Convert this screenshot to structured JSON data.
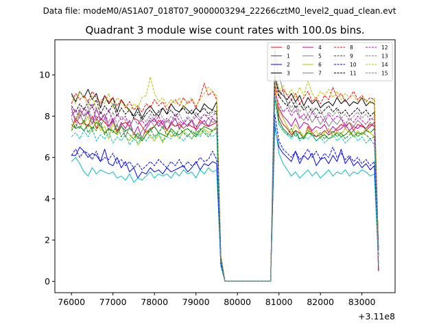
{
  "suptitle": "Data file: modeM0/AS1A07_018T07_9000003294_22266cztM0_level2_quad_clean.evt",
  "chart_data": {
    "type": "line",
    "title": "Quadrant 3 module wise count rates with 100.0s bins.",
    "xlabel": "",
    "ylabel": "",
    "x_offset_label": "+3.11e8",
    "x_offset": 311000000,
    "xlim": [
      75600,
      83800
    ],
    "ylim": [
      -0.55,
      11.7
    ],
    "xticks": [
      76000,
      77000,
      78000,
      79000,
      80000,
      81000,
      82000,
      83000
    ],
    "yticks": [
      0,
      2,
      4,
      6,
      8,
      10
    ],
    "legend_position": "top-right",
    "x_start": 76000,
    "x_step": 100,
    "n_points": 75,
    "series": [
      {
        "name": "0",
        "color": "#ff0000",
        "dash": "solid",
        "seg1": [
          7.4,
          7.9,
          7.6,
          7.7,
          7.5,
          8.0,
          7.4,
          7.9,
          7.7,
          7.5,
          7.8,
          7.3,
          7.6,
          7.7,
          7.5,
          7.9,
          7.8,
          7.5,
          7.2,
          7.4,
          7.5,
          7.8,
          7.6,
          7.3,
          7.7,
          7.5,
          7.6,
          7.4,
          7.6,
          7.5,
          7.4,
          7.8,
          7.6,
          7.5,
          7.6,
          7.7
        ],
        "seg2": [
          9.6,
          8.0,
          7.6,
          7.4,
          7.1,
          7.3,
          7.2,
          6.9,
          7.5,
          7.2,
          7.0,
          7.1,
          7.3,
          7.1,
          7.2,
          7.4,
          7.6,
          7.5,
          7.7,
          7.3,
          7.6,
          7.5,
          7.4,
          7.6,
          7.5
        ]
      },
      {
        "name": "1",
        "color": "#008000",
        "dash": "solid",
        "seg1": [
          7.6,
          7.4,
          7.5,
          7.3,
          7.6,
          7.4,
          7.7,
          7.5,
          7.2,
          7.4,
          7.3,
          7.1,
          7.5,
          7.3,
          7.4,
          7.2,
          7.0,
          6.8,
          7.1,
          7.3,
          7.5,
          7.2,
          7.1,
          7.0,
          7.4,
          7.2,
          7.1,
          7.3,
          7.4,
          7.2,
          7.0,
          7.3,
          7.5,
          7.4,
          7.3,
          7.5
        ],
        "seg2": [
          9.0,
          7.8,
          7.4,
          7.2,
          7.0,
          7.3,
          6.9,
          7.0,
          7.2,
          7.1,
          6.8,
          7.0,
          7.1,
          6.9,
          7.0,
          7.2,
          7.0,
          7.1,
          7.3,
          7.0,
          7.2,
          7.1,
          7.3,
          7.2,
          7.4
        ]
      },
      {
        "name": "2",
        "color": "#0000ff",
        "dash": "solid",
        "seg1": [
          6.1,
          6.1,
          6.5,
          6.3,
          6.0,
          6.2,
          6.1,
          5.8,
          6.4,
          5.7,
          5.6,
          6.0,
          5.5,
          5.8,
          5.3,
          5.5,
          5.0,
          5.3,
          5.2,
          5.5,
          5.3,
          5.4,
          5.2,
          5.5,
          5.3,
          5.4,
          5.5,
          5.6,
          5.3,
          5.5,
          5.8,
          5.4,
          5.7,
          5.6,
          5.8,
          5.7
        ],
        "seg2": [
          7.5,
          6.5,
          6.2,
          6.0,
          5.8,
          6.3,
          5.7,
          6.1,
          5.9,
          6.2,
          5.6,
          5.9,
          6.0,
          5.7,
          6.1,
          5.8,
          6.4,
          5.7,
          6.0,
          5.6,
          5.8,
          5.5,
          5.7,
          5.4,
          5.6
        ]
      },
      {
        "name": "3",
        "color": "#000000",
        "dash": "solid",
        "seg1": [
          9.1,
          8.7,
          9.2,
          8.9,
          9.3,
          8.8,
          9.1,
          8.4,
          9.0,
          8.6,
          8.9,
          8.2,
          8.8,
          8.5,
          8.3,
          8.0,
          8.4,
          7.9,
          8.3,
          8.5,
          8.2,
          8.0,
          8.4,
          8.1,
          8.6,
          8.3,
          8.2,
          8.5,
          8.3,
          8.1,
          8.4,
          8.2,
          8.6,
          8.4,
          8.3,
          8.7
        ],
        "seg2": [
          9.8,
          9.2,
          9.0,
          8.8,
          9.1,
          8.7,
          9.0,
          8.5,
          8.9,
          8.6,
          8.8,
          8.4,
          8.6,
          8.7,
          8.5,
          8.9,
          8.6,
          8.8,
          8.5,
          8.7,
          8.6,
          8.9,
          8.5,
          8.7,
          8.6
        ]
      },
      {
        "name": "4",
        "color": "#bf00bf",
        "dash": "solid",
        "seg1": [
          8.4,
          7.7,
          8.3,
          8.0,
          8.2,
          7.6,
          8.4,
          7.8,
          8.1,
          7.5,
          7.9,
          7.2,
          7.7,
          7.4,
          7.8,
          7.1,
          7.5,
          6.9,
          7.4,
          7.7,
          7.9,
          7.5,
          7.8,
          7.3,
          7.6,
          7.9,
          7.4,
          7.7,
          7.5,
          7.8,
          7.3,
          7.6,
          7.8,
          7.5,
          7.9,
          7.7
        ],
        "seg2": [
          9.3,
          8.4,
          8.0,
          7.8,
          7.5,
          7.9,
          7.4,
          7.7,
          7.6,
          7.3,
          7.5,
          7.4,
          7.6,
          7.2,
          7.5,
          7.3,
          7.4,
          7.6,
          7.3,
          7.5,
          7.4,
          7.6,
          7.3,
          7.5,
          7.7
        ]
      },
      {
        "name": "5",
        "color": "#00bfbf",
        "dash": "solid",
        "seg1": [
          5.8,
          6.0,
          5.7,
          5.3,
          5.1,
          5.5,
          5.2,
          5.4,
          5.3,
          5.2,
          5.3,
          5.0,
          5.1,
          4.9,
          5.2,
          4.8,
          5.0,
          4.9,
          5.1,
          5.3,
          5.0,
          5.2,
          5.1,
          5.2,
          5.0,
          5.3,
          5.1,
          5.4,
          5.2,
          5.3,
          5.0,
          5.4,
          5.2,
          5.5,
          5.3,
          5.4
        ],
        "seg2": [
          7.7,
          6.2,
          5.7,
          5.4,
          5.1,
          5.3,
          5.0,
          5.2,
          5.4,
          5.1,
          5.3,
          5.0,
          5.2,
          5.4,
          5.1,
          5.3,
          5.2,
          5.4,
          5.1,
          5.3,
          5.2,
          5.4,
          5.3,
          5.1,
          5.2
        ]
      },
      {
        "name": "6",
        "color": "#bfbf00",
        "dash": "solid",
        "seg1": [
          7.4,
          7.8,
          8.2,
          7.6,
          8.0,
          7.2,
          7.9,
          7.3,
          7.5,
          6.9,
          7.7,
          7.1,
          7.6,
          7.0,
          6.8,
          7.2,
          6.6,
          6.9,
          7.3,
          7.0,
          6.8,
          7.1,
          6.7,
          7.4,
          7.0,
          7.2,
          6.9,
          7.3,
          7.1,
          6.9,
          7.3,
          7.1,
          7.4,
          7.2,
          7.3,
          7.5
        ],
        "seg2": [
          9.4,
          8.3,
          7.9,
          7.5,
          7.2,
          7.6,
          7.3,
          7.0,
          7.4,
          7.1,
          7.3,
          6.9,
          7.2,
          7.4,
          7.0,
          7.3,
          7.1,
          7.4,
          7.2,
          7.0,
          7.3,
          7.1,
          7.4,
          7.2,
          7.0
        ]
      },
      {
        "name": "7",
        "color": "#808080",
        "dash": "solid",
        "seg1": [
          7.9,
          7.4,
          8.1,
          7.7,
          8.3,
          7.6,
          8.0,
          7.5,
          7.9,
          7.3,
          7.8,
          7.2,
          7.6,
          7.0,
          7.5,
          7.2,
          6.9,
          7.3,
          7.6,
          7.8,
          7.5,
          7.7,
          7.4,
          7.8,
          7.6,
          7.5,
          7.7,
          7.4,
          7.6,
          7.8,
          7.5,
          7.7,
          7.6,
          7.9,
          7.7,
          7.8
        ],
        "seg2": [
          11.2,
          10.0,
          9.2,
          8.6,
          8.2,
          8.5,
          8.0,
          7.8,
          8.1,
          7.7,
          8.0,
          7.6,
          7.9,
          7.5,
          7.8,
          7.6,
          7.9,
          7.4,
          7.7,
          7.5,
          7.8,
          7.6,
          7.4,
          7.7,
          7.5
        ]
      },
      {
        "name": "8",
        "color": "#ff0000",
        "dash": "dashed",
        "seg1": [
          8.6,
          9.1,
          8.8,
          9.0,
          8.7,
          9.2,
          8.9,
          8.6,
          9.0,
          8.7,
          8.9,
          8.5,
          8.8,
          8.4,
          8.7,
          8.3,
          8.5,
          8.2,
          8.6,
          8.4,
          8.8,
          8.5,
          8.7,
          8.3,
          8.6,
          8.8,
          8.5,
          8.9,
          8.6,
          8.8,
          8.4,
          8.9,
          9.6,
          9.0,
          9.2,
          8.8
        ],
        "seg2": [
          9.5,
          8.9,
          9.3,
          9.0,
          8.8,
          9.1,
          8.6,
          8.9,
          9.2,
          8.7,
          8.9,
          8.6,
          9.0,
          8.8,
          9.4,
          8.9,
          9.1,
          8.7,
          8.9,
          9.2,
          8.8,
          9.0,
          8.7,
          8.9,
          8.8
        ]
      },
      {
        "name": "9",
        "color": "#008000",
        "dash": "dashed",
        "seg1": [
          7.3,
          7.6,
          7.4,
          7.8,
          7.2,
          7.5,
          7.3,
          7.7,
          7.1,
          7.4,
          7.2,
          7.6,
          7.0,
          7.3,
          7.1,
          6.9,
          7.2,
          6.8,
          7.1,
          7.4,
          7.0,
          7.2,
          7.5,
          7.1,
          7.3,
          7.0,
          7.4,
          7.2,
          7.0,
          7.3,
          7.1,
          7.4,
          7.2,
          7.0,
          7.3,
          7.4
        ],
        "seg2": [
          8.9,
          7.6,
          7.3,
          7.1,
          7.4,
          7.0,
          7.2,
          6.9,
          7.3,
          7.1,
          7.0,
          7.2,
          6.9,
          7.1,
          7.3,
          7.0,
          7.2,
          6.9,
          7.1,
          7.3,
          7.0,
          7.2,
          7.1,
          6.9,
          7.0
        ]
      },
      {
        "name": "10",
        "color": "#0000ff",
        "dash": "dashed",
        "seg1": [
          6.1,
          6.4,
          6.0,
          6.3,
          6.2,
          5.9,
          6.3,
          5.8,
          6.0,
          5.9,
          6.2,
          5.7,
          5.9,
          5.6,
          5.8,
          5.5,
          5.7,
          5.4,
          5.6,
          5.8,
          5.6,
          5.9,
          5.7,
          5.5,
          5.8,
          5.6,
          5.9,
          5.5,
          5.8,
          5.6,
          5.7,
          6.0,
          5.8,
          5.9,
          6.3,
          5.9
        ],
        "seg2": [
          8.1,
          6.8,
          6.4,
          6.2,
          6.0,
          6.3,
          5.9,
          6.1,
          6.4,
          6.0,
          6.3,
          5.9,
          6.2,
          6.0,
          6.5,
          6.0,
          6.2,
          5.9,
          6.1,
          5.8,
          6.0,
          5.7,
          5.9,
          5.6,
          5.8
        ]
      },
      {
        "name": "11",
        "color": "#000000",
        "dash": "dashed",
        "seg1": [
          8.5,
          8.2,
          8.6,
          8.3,
          8.7,
          8.4,
          8.8,
          8.1,
          8.5,
          8.2,
          8.6,
          8.0,
          8.4,
          8.1,
          8.3,
          7.9,
          8.2,
          7.8,
          8.1,
          8.3,
          8.0,
          8.2,
          8.4,
          8.1,
          8.3,
          8.0,
          8.2,
          8.4,
          8.1,
          8.3,
          8.0,
          8.2,
          8.4,
          8.1,
          8.3,
          8.2
        ],
        "seg2": [
          9.9,
          9.0,
          8.7,
          8.5,
          8.8,
          8.4,
          8.6,
          8.3,
          8.5,
          8.2,
          8.4,
          8.1,
          8.3,
          8.5,
          8.2,
          8.4,
          8.1,
          8.3,
          8.0,
          8.2,
          8.4,
          8.1,
          8.3,
          8.0,
          8.2
        ]
      },
      {
        "name": "12",
        "color": "#bf00bf",
        "dash": "dashed",
        "seg1": [
          8.0,
          8.3,
          7.9,
          8.4,
          8.1,
          8.6,
          7.8,
          8.2,
          7.9,
          8.3,
          7.7,
          8.1,
          7.8,
          8.0,
          7.5,
          7.9,
          7.6,
          7.8,
          7.5,
          7.9,
          7.7,
          8.0,
          7.6,
          7.9,
          7.7,
          8.1,
          7.8,
          7.6,
          7.9,
          7.7,
          8.0,
          7.8,
          8.1,
          7.9,
          8.0,
          8.2
        ],
        "seg2": [
          9.1,
          8.6,
          8.2,
          8.4,
          8.0,
          8.3,
          7.9,
          8.1,
          7.8,
          8.2,
          7.9,
          8.0,
          7.7,
          8.1,
          7.8,
          8.0,
          7.9,
          7.6,
          7.9,
          7.7,
          8.0,
          7.8,
          7.6,
          7.9,
          7.8
        ]
      },
      {
        "name": "13",
        "color": "#00bfbf",
        "dash": "dashed",
        "seg1": [
          7.0,
          7.2,
          6.9,
          7.3,
          7.0,
          7.4,
          6.8,
          7.1,
          6.9,
          7.2,
          6.7,
          7.0,
          6.8,
          7.1,
          6.6,
          6.9,
          6.7,
          7.0,
          6.8,
          7.1,
          6.9,
          7.2,
          6.8,
          7.0,
          6.9,
          7.2,
          7.0,
          6.8,
          7.1,
          6.9,
          7.2,
          7.0,
          7.3,
          7.1,
          7.0,
          7.2
        ],
        "seg2": [
          9.0,
          7.6,
          7.3,
          7.1,
          6.9,
          7.2,
          6.8,
          7.0,
          6.9,
          7.1,
          6.8,
          7.0,
          6.7,
          6.9,
          7.1,
          6.8,
          7.0,
          6.7,
          6.9,
          7.1,
          6.8,
          7.0,
          6.7,
          6.9,
          6.6
        ]
      },
      {
        "name": "14",
        "color": "#bfbf00",
        "dash": "dashed",
        "seg1": [
          9.0,
          8.6,
          9.2,
          8.9,
          8.5,
          9.0,
          8.3,
          8.8,
          8.6,
          9.1,
          8.4,
          8.9,
          8.7,
          8.5,
          8.2,
          8.6,
          8.4,
          8.9,
          9.0,
          9.9,
          9.1,
          8.7,
          8.9,
          8.5,
          8.8,
          8.6,
          8.9,
          8.4,
          8.7,
          8.9,
          8.5,
          8.8,
          9.1,
          9.4,
          9.2,
          9.0
        ],
        "seg2": [
          10.0,
          9.2,
          9.5,
          9.0,
          9.3,
          8.9,
          9.4,
          9.0,
          9.7,
          9.1,
          8.8,
          9.2,
          9.0,
          9.3,
          8.9,
          9.2,
          8.8,
          9.1,
          8.9,
          9.0,
          8.7,
          8.9,
          8.8,
          8.6,
          8.9
        ]
      },
      {
        "name": "15",
        "color": "#808080",
        "dash": "dashed",
        "seg1": [
          8.2,
          7.9,
          8.4,
          8.0,
          8.5,
          7.8,
          8.3,
          7.9,
          8.1,
          7.7,
          8.2,
          7.6,
          8.0,
          7.8,
          7.5,
          7.9,
          7.6,
          8.0,
          7.7,
          8.1,
          7.8,
          8.3,
          7.9,
          7.7,
          8.0,
          7.8,
          8.1,
          7.7,
          8.0,
          7.8,
          8.2,
          7.9,
          8.1,
          8.0,
          8.2,
          8.1
        ],
        "seg2": [
          10.2,
          9.3,
          9.0,
          8.7,
          8.4,
          8.7,
          8.2,
          8.5,
          8.1,
          8.4,
          8.0,
          8.3,
          7.9,
          8.2,
          8.0,
          8.3,
          7.9,
          8.1,
          7.8,
          8.0,
          8.2,
          7.9,
          8.1,
          7.8,
          8.0
        ]
      }
    ]
  }
}
